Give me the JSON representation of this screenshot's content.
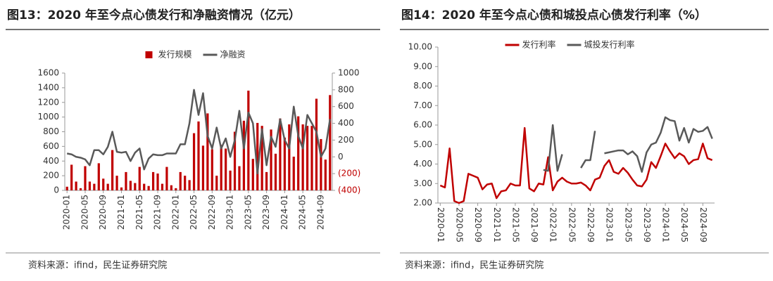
{
  "chart_data": [
    {
      "type": "bar",
      "title": "图13：2020 年至今点心债发行和净融资情况（亿元）",
      "source": "资料来源：ifind，民生证券研究院",
      "categories": [
        "2020-01",
        null,
        null,
        null,
        "2020-05",
        null,
        null,
        null,
        "2020-09",
        null,
        null,
        null,
        "2021-01",
        null,
        null,
        null,
        "2021-05",
        null,
        null,
        null,
        "2021-09",
        null,
        null,
        null,
        "2022-01",
        null,
        null,
        null,
        "2022-05",
        null,
        null,
        null,
        "2022-09",
        null,
        null,
        null,
        "2023-01",
        null,
        null,
        null,
        "2023-05",
        null,
        null,
        null,
        "2023-09",
        null,
        null,
        null,
        "2024-01",
        null,
        null,
        null,
        "2024-05",
        null,
        null,
        null,
        "2024-09",
        null,
        null
      ],
      "series": [
        {
          "name": "发行规模",
          "type": "bar",
          "color": "#c00000",
          "values": [
            50,
            350,
            120,
            30,
            330,
            120,
            90,
            370,
            160,
            90,
            550,
            200,
            40,
            250,
            130,
            100,
            320,
            90,
            60,
            250,
            230,
            90,
            320,
            70,
            30,
            250,
            200,
            140,
            780,
            940,
            610,
            1050,
            560,
            200,
            620,
            570,
            270,
            800,
            330,
            950,
            1360,
            430,
            920,
            880,
            250,
            830,
            500,
            980,
            720,
            900,
            460,
            1010,
            900,
            880,
            880,
            1250,
            700,
            420,
            1300
          ]
        },
        {
          "name": "净融资",
          "type": "line",
          "axis": "y2",
          "color": "#595959",
          "values": [
            40,
            30,
            0,
            -10,
            -30,
            -100,
            80,
            80,
            30,
            120,
            300,
            60,
            50,
            60,
            -50,
            50,
            100,
            -150,
            -20,
            30,
            20,
            20,
            40,
            40,
            40,
            150,
            150,
            400,
            800,
            500,
            760,
            250,
            100,
            350,
            100,
            220,
            0,
            200,
            550,
            100,
            530,
            400,
            -200,
            330,
            -100,
            240,
            120,
            450,
            200,
            100,
            600,
            250,
            100,
            500,
            400,
            300,
            0,
            100,
            450
          ]
        }
      ],
      "ylim": [
        0,
        1600
      ],
      "yticks": [
        0,
        200,
        400,
        600,
        800,
        1000,
        1200,
        1400,
        1600
      ],
      "y2lim": [
        -400,
        1000
      ],
      "y2ticks": [
        {
          "value": -400,
          "label": "(400)"
        },
        {
          "value": -200,
          "label": "(200)"
        },
        0,
        200,
        400,
        600,
        800,
        1000
      ],
      "y2_negative_color": "#c00000",
      "grid": false,
      "legend": "top"
    },
    {
      "type": "line",
      "title": "图14：2020 年至今点心债和城投点心债发行利率（%）",
      "source": "资料来源：ifind，民生证券研究院",
      "categories": [
        "2020-01",
        null,
        null,
        null,
        "2020-05",
        null,
        null,
        null,
        "2020-09",
        null,
        null,
        null,
        "2021-01",
        null,
        null,
        null,
        "2021-05",
        null,
        null,
        null,
        "2021-09",
        null,
        null,
        null,
        "2022-01",
        null,
        null,
        null,
        "2022-05",
        null,
        null,
        null,
        "2022-09",
        null,
        null,
        null,
        "2023-01",
        null,
        null,
        null,
        "2023-05",
        null,
        null,
        null,
        "2023-09",
        null,
        null,
        null,
        "2024-01",
        null,
        null,
        null,
        "2024-05",
        null,
        null,
        null,
        "2024-09",
        null,
        null
      ],
      "series": [
        {
          "name": "发行利率",
          "color": "#c00000",
          "values": [
            2.9,
            2.8,
            4.8,
            2.1,
            2.0,
            2.1,
            3.5,
            3.4,
            3.3,
            2.7,
            2.95,
            3.0,
            2.25,
            2.6,
            2.65,
            3.0,
            2.9,
            2.9,
            5.85,
            2.75,
            2.6,
            3.0,
            2.95,
            4.35,
            2.65,
            3.1,
            3.3,
            3.1,
            3.0,
            3.0,
            3.05,
            2.9,
            2.65,
            3.2,
            3.3,
            3.9,
            4.2,
            3.6,
            3.5,
            3.8,
            3.55,
            3.2,
            2.9,
            2.85,
            3.2,
            4.1,
            3.8,
            4.4,
            5.05,
            4.65,
            4.3,
            4.55,
            4.4,
            4.0,
            4.2,
            4.25,
            5.05,
            4.3,
            4.2
          ]
        },
        {
          "name": "城投发行利率",
          "color": "#595959",
          "values": [
            null,
            null,
            null,
            null,
            null,
            null,
            null,
            null,
            null,
            null,
            null,
            null,
            null,
            null,
            null,
            null,
            null,
            null,
            null,
            null,
            null,
            null,
            3.7,
            3.65,
            6.0,
            3.65,
            4.5,
            null,
            null,
            null,
            3.8,
            4.2,
            4.2,
            5.7,
            null,
            4.55,
            4.6,
            4.65,
            4.7,
            4.7,
            4.5,
            4.65,
            4.4,
            3.6,
            4.6,
            5.0,
            5.1,
            5.6,
            6.4,
            6.25,
            6.2,
            5.2,
            5.85,
            5.1,
            5.8,
            5.65,
            5.7,
            5.9,
            5.3
          ]
        }
      ],
      "ylim": [
        2,
        10
      ],
      "yticks": [
        {
          "value": 2,
          "label": "2.00"
        },
        {
          "value": 3,
          "label": "3.00"
        },
        {
          "value": 4,
          "label": "4.00"
        },
        {
          "value": 5,
          "label": "5.00"
        },
        {
          "value": 6,
          "label": "6.00"
        },
        {
          "value": 7,
          "label": "7.00"
        },
        {
          "value": 8,
          "label": "8.00"
        },
        {
          "value": 9,
          "label": "9.00"
        },
        {
          "value": 10,
          "label": "10.00"
        }
      ],
      "grid": false,
      "legend": "top"
    }
  ]
}
